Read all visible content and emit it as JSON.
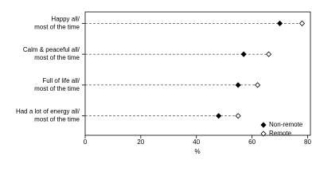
{
  "chart_data": {
    "type": "dot",
    "categories": [
      [
        "Happy all/",
        "most of the time"
      ],
      [
        "Calm & peaceful all/",
        "most of the time"
      ],
      [
        "Full of life all/",
        "most of the time"
      ],
      [
        "Had a lot of energy all/",
        "most of the time"
      ]
    ],
    "series": [
      {
        "name": "Non-remote",
        "color": "#000000",
        "marker": "filled",
        "values": [
          70,
          57,
          55,
          48
        ]
      },
      {
        "name": "Remote",
        "color": "#000000",
        "marker": "open",
        "values": [
          78,
          66,
          62,
          55
        ]
      }
    ],
    "x_label": "%",
    "xlim": [
      0,
      81
    ],
    "xticks": [
      0,
      20,
      40,
      60,
      80
    ],
    "legend": "bottom-right"
  }
}
